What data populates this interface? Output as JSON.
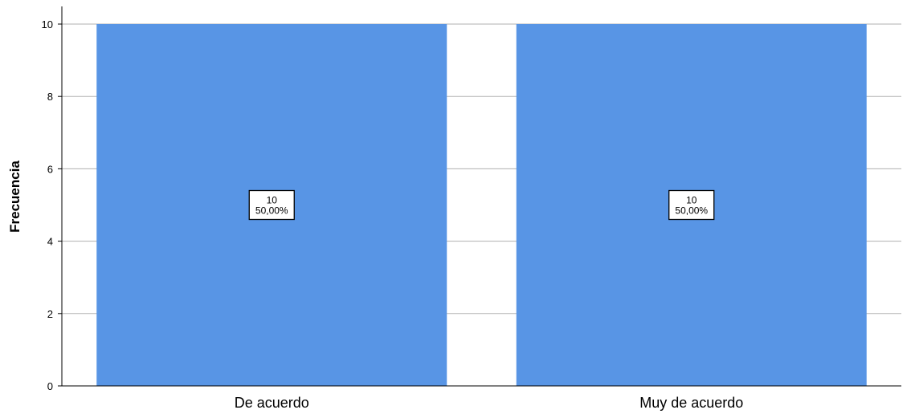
{
  "chart_data": {
    "type": "bar",
    "categories": [
      "De acuerdo",
      "Muy de acuerdo"
    ],
    "values": [
      10,
      10
    ],
    "data_labels": [
      {
        "count": "10",
        "percent": "50,00%"
      },
      {
        "count": "10",
        "percent": "50,00%"
      }
    ],
    "title": "",
    "xlabel": "",
    "ylabel": "Frecuencia",
    "ylim": [
      0,
      10
    ],
    "yticks": [
      0,
      2,
      4,
      6,
      8,
      10
    ],
    "ytick_labels": [
      "0",
      "2",
      "4",
      "6",
      "8",
      "10"
    ],
    "grid": "horizontal",
    "legend": "none",
    "bar_color": "#5895e5",
    "grid_color": "#b0b0b0"
  }
}
